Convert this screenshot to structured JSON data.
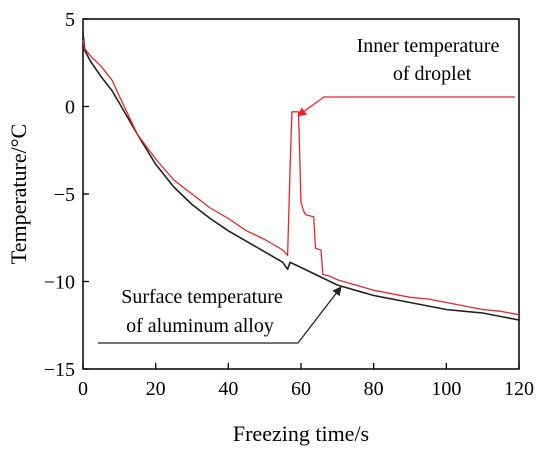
{
  "chart_data": {
    "type": "line",
    "xlabel": "Freezing time/s",
    "ylabel": "Temperature/°C",
    "xlim": [
      0,
      120
    ],
    "ylim": [
      -15,
      5
    ],
    "xticks": [
      0,
      20,
      40,
      60,
      80,
      100,
      120
    ],
    "yticks": [
      5,
      0,
      -5,
      -10,
      -15
    ],
    "xtick_labels": [
      "0",
      "20",
      "40",
      "60",
      "80",
      "100",
      "120"
    ],
    "ytick_labels": [
      "5",
      "0",
      "−5",
      "−10",
      "−15"
    ],
    "grid": false,
    "series": [
      {
        "name": "Inner temperature of droplet",
        "color": "#e8262b",
        "x": [
          0,
          0.5,
          2,
          5,
          8,
          10,
          15,
          20,
          25,
          30,
          35,
          40,
          45,
          50,
          55,
          56.3,
          57,
          57.5,
          59.3,
          60,
          61,
          61.5,
          63.5,
          64,
          65.5,
          66,
          68,
          70,
          75,
          80,
          85,
          90,
          95,
          100,
          105,
          110,
          115,
          120
        ],
        "y": [
          3.8,
          3.3,
          2.9,
          2.3,
          1.5,
          0.6,
          -1.6,
          -3.0,
          -4.2,
          -5.0,
          -5.8,
          -6.4,
          -7.1,
          -7.6,
          -8.2,
          -8.5,
          -3.5,
          -0.3,
          -0.3,
          -5.5,
          -6.1,
          -6.2,
          -6.3,
          -8.1,
          -8.2,
          -9.6,
          -9.7,
          -9.9,
          -10.2,
          -10.5,
          -10.7,
          -10.9,
          -11.0,
          -11.2,
          -11.4,
          -11.6,
          -11.7,
          -11.9
        ]
      },
      {
        "name": "Surface temperature of aluminum alloy",
        "color": "#222222",
        "x": [
          0,
          0.5,
          2,
          5,
          8,
          10,
          15,
          20,
          25,
          30,
          35,
          40,
          45,
          50,
          55,
          56.3,
          57,
          58,
          60,
          62,
          64,
          66,
          68,
          70,
          75,
          80,
          85,
          90,
          95,
          100,
          105,
          110,
          115,
          120
        ],
        "y": [
          4.2,
          3.2,
          2.6,
          1.7,
          0.9,
          0.2,
          -1.6,
          -3.3,
          -4.6,
          -5.6,
          -6.4,
          -7.1,
          -7.7,
          -8.3,
          -8.9,
          -9.3,
          -8.9,
          -9.0,
          -9.2,
          -9.4,
          -9.6,
          -9.8,
          -10.0,
          -10.2,
          -10.5,
          -10.8,
          -11.0,
          -11.2,
          -11.4,
          -11.6,
          -11.7,
          -11.8,
          -12.0,
          -12.2
        ]
      }
    ],
    "annotations": [
      {
        "lines": [
          "Inner temperature",
          "of droplet"
        ],
        "target_series": 0,
        "target_x": 58.3,
        "target_y": -0.3
      },
      {
        "lines": [
          "Surface temperature",
          "of aluminum alloy"
        ],
        "target_series": 1,
        "target_x": 71,
        "target_y": -10.2
      }
    ]
  }
}
